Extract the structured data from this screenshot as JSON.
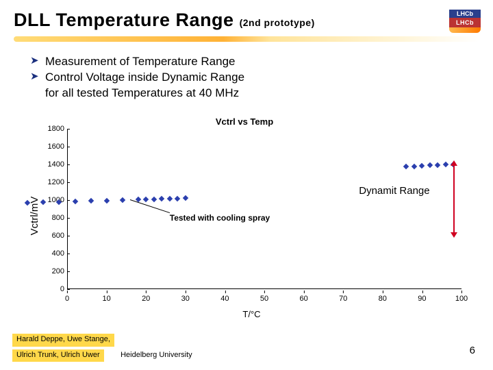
{
  "header": {
    "title_main": "DLL Temperature Range",
    "title_sub": "(2nd prototype)",
    "logo_top": "LHCb",
    "logo_mid": "LHCb",
    "underline_gradient": [
      "#ffdc78",
      "#ffb236",
      "#ffe49a",
      "#fff6dc",
      "#ffffff"
    ]
  },
  "bullets": {
    "b1": "Measurement of Temperature Range",
    "b2": "Control Voltage inside Dynamic Range",
    "b2_cont": "for all tested Temperatures at 40 MHz"
  },
  "chart": {
    "type": "scatter",
    "title": "Vctrl vs Temp",
    "ylabel": "Vctrl/mV",
    "xlabel": "T/°C",
    "xlim": [
      0,
      100
    ],
    "ylim": [
      0,
      1800
    ],
    "xtick_step": 10,
    "ytick_step": 200,
    "xticks": [
      0,
      10,
      20,
      30,
      40,
      50,
      60,
      70,
      80,
      90,
      100
    ],
    "yticks": [
      0,
      200,
      400,
      600,
      800,
      1000,
      1200,
      1400,
      1600,
      1800
    ],
    "series": [
      {
        "name": "vctrl",
        "marker": "diamond",
        "color": "#2b3fae",
        "points": [
          [
            -10,
            970
          ],
          [
            -6,
            975
          ],
          [
            -2,
            980
          ],
          [
            2,
            985
          ],
          [
            6,
            990
          ],
          [
            10,
            995
          ],
          [
            14,
            1000
          ],
          [
            18,
            1005
          ],
          [
            20,
            1008
          ],
          [
            22,
            1010
          ],
          [
            24,
            1012
          ],
          [
            26,
            1015
          ],
          [
            28,
            1018
          ],
          [
            30,
            1020
          ],
          [
            86,
            1375
          ],
          [
            88,
            1380
          ],
          [
            90,
            1385
          ],
          [
            92,
            1390
          ],
          [
            94,
            1395
          ],
          [
            96,
            1398
          ],
          [
            98,
            1400
          ]
        ]
      }
    ],
    "annotations": {
      "tested_spray": {
        "text": "Tested with cooling spray",
        "arrow_from": [
          16,
          1002
        ],
        "label_at": [
          26,
          810
        ]
      },
      "dynamic_range": {
        "text": "Dynamit Range",
        "bar_x": 98,
        "bar_y0": 620,
        "bar_y1": 1400,
        "label_at": [
          74,
          1040
        ],
        "color": "#d00020"
      }
    },
    "background_color": "#ffffff",
    "axis_color": "#000000",
    "tick_fontsize": 11,
    "title_fontsize": 13,
    "label_fontsize": 13
  },
  "footer": {
    "line1": "Harald Deppe, Uwe Stange,",
    "line2": "Ulrich Trunk, Ulrich Uwer",
    "affil": "Heidelberg University",
    "page": "6"
  }
}
